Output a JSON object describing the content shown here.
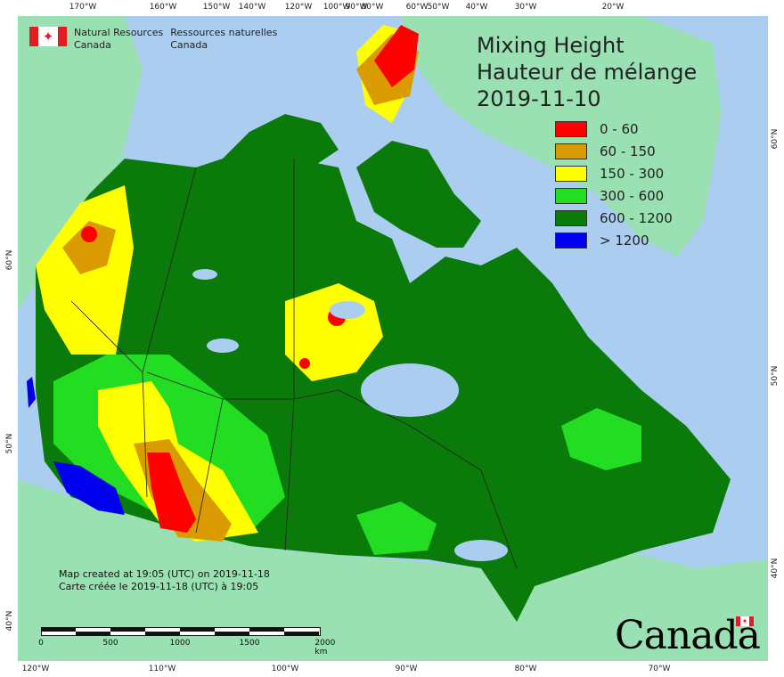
{
  "logo": {
    "en_line1": "Natural Resources",
    "en_line2": "Canada",
    "fr_line1": "Ressources naturelles",
    "fr_line2": "Canada"
  },
  "title": {
    "line1": "Mixing Height",
    "line2": "Hauteur de mélange",
    "date": "2019-11-10"
  },
  "legend": [
    {
      "label": "0 - 60",
      "color": "#ff0000"
    },
    {
      "label": "60 - 150",
      "color": "#d99b00"
    },
    {
      "label": "150 - 300",
      "color": "#ffff00"
    },
    {
      "label": "300 - 600",
      "color": "#22dd22"
    },
    {
      "label": "600 - 1200",
      "color": "#0a7a0a"
    },
    {
      "label": "> 1200",
      "color": "#0000ee"
    }
  ],
  "credit": {
    "line1": "Map created at 19:05 (UTC) on 2019-11-18",
    "line2": "Carte créée le 2019-11-18 (UTC) à 19:05"
  },
  "scale": {
    "labels": [
      "0",
      "500",
      "1000",
      "1500",
      "2000  km"
    ]
  },
  "wordmark": "Canada",
  "ticks": {
    "top": [
      "170°W",
      "160°W",
      "150°W",
      "140°W",
      "120°W",
      "100°W",
      "90°W",
      "80°W",
      "60°W",
      "50°W",
      "40°W",
      "30°W",
      "20°W"
    ],
    "bottom": [
      "120°W",
      "110°W",
      "100°W",
      "90°W",
      "80°W",
      "70°W"
    ],
    "left": [
      "60°N",
      "50°N",
      "40°N"
    ],
    "right": [
      "60°N",
      "50°N",
      "40°N"
    ]
  },
  "colors": {
    "ocean": "#aacdf0",
    "foreign_land": "#99e0b2"
  }
}
